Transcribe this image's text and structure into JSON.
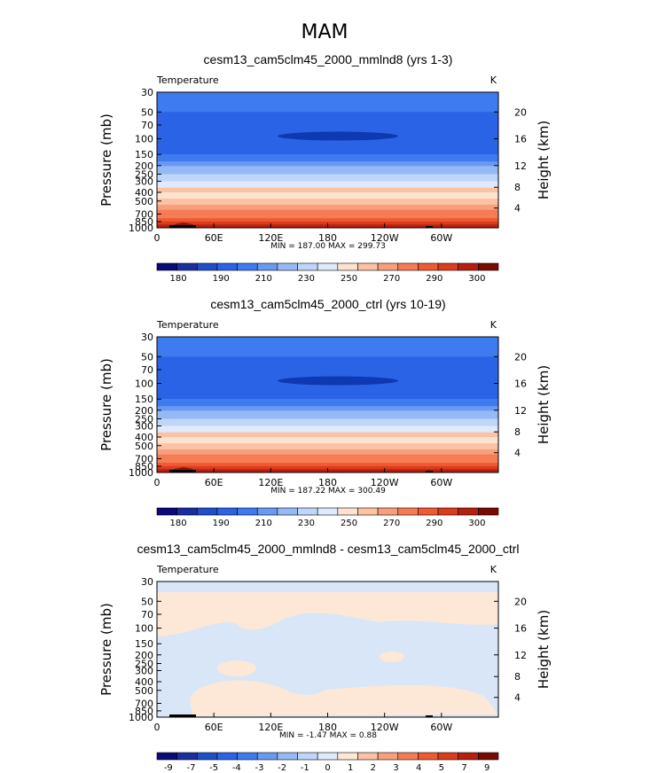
{
  "figure": {
    "title": "MAM"
  },
  "colors": {
    "temp_levels": [
      "#0a0a78",
      "#1a2ea0",
      "#1f4fc8",
      "#2a63e6",
      "#3f7bf0",
      "#6a99f2",
      "#96b9f5",
      "#bed6fa",
      "#dfeafc",
      "#fde3cf",
      "#fbc2a4",
      "#f8a07e",
      "#f57c55",
      "#ef5a32",
      "#db3c1c",
      "#b52010",
      "#7a0a04"
    ],
    "diff_levels": [
      "#0a0a78",
      "#1a2ea0",
      "#1f4fc8",
      "#2a63e6",
      "#3f7bf0",
      "#6a99f2",
      "#96b9f5",
      "#bed6fa",
      "#dfeafc",
      "#fde8d8",
      "#fbc2a4",
      "#f8a07e",
      "#f57c55",
      "#ef5a32",
      "#db3c1c",
      "#b52010",
      "#7a0a04"
    ],
    "light_blue": "#d8e6f8",
    "light_orange": "#fde8d8"
  },
  "chart_data": [
    {
      "type": "heatmap",
      "title": "cesm13_cam5clm45_2000_mmlnd8 (yrs 1-3)",
      "variable": "Temperature",
      "units": "K",
      "ylabel": "Pressure  (mb)",
      "ylabel_right": "Height  (km)",
      "x_ticks": [
        "0",
        "60E",
        "120E",
        "180",
        "120W",
        "60W"
      ],
      "y_ticks": [
        "30",
        "50",
        "70",
        "100",
        "150",
        "200",
        "250",
        "300",
        "400",
        "500",
        "700",
        "850",
        "1000"
      ],
      "right_ticks": [
        "20",
        "16",
        "12",
        "8",
        "4"
      ],
      "stats": "MIN = 187.00   MAX = 299.73",
      "colorbar_ticks": [
        "180",
        "190",
        "210",
        "230",
        "250",
        "270",
        "290",
        "300"
      ],
      "bands_pressure_mb": [
        [
          30,
          50,
          210
        ],
        [
          50,
          150,
          195
        ],
        [
          150,
          180,
          215
        ],
        [
          180,
          220,
          225
        ],
        [
          220,
          300,
          235
        ],
        [
          300,
          420,
          250
        ],
        [
          420,
          550,
          260
        ],
        [
          550,
          700,
          270
        ],
        [
          700,
          850,
          280
        ],
        [
          850,
          1000,
          290
        ]
      ]
    },
    {
      "type": "heatmap",
      "title": "cesm13_cam5clm45_2000_ctrl (yrs 10-19)",
      "variable": "Temperature",
      "units": "K",
      "ylabel": "Pressure  (mb)",
      "ylabel_right": "Height  (km)",
      "x_ticks": [
        "0",
        "60E",
        "120E",
        "180",
        "120W",
        "60W"
      ],
      "y_ticks": [
        "30",
        "50",
        "70",
        "100",
        "150",
        "200",
        "250",
        "300",
        "400",
        "500",
        "700",
        "850",
        "1000"
      ],
      "right_ticks": [
        "20",
        "16",
        "12",
        "8",
        "4"
      ],
      "stats": "MIN = 187.22   MAX = 300.49",
      "colorbar_ticks": [
        "180",
        "190",
        "210",
        "230",
        "250",
        "270",
        "290",
        "300"
      ],
      "bands_pressure_mb": [
        [
          30,
          50,
          210
        ],
        [
          50,
          150,
          195
        ],
        [
          150,
          180,
          215
        ],
        [
          180,
          220,
          225
        ],
        [
          220,
          300,
          235
        ],
        [
          300,
          420,
          250
        ],
        [
          420,
          550,
          260
        ],
        [
          550,
          700,
          270
        ],
        [
          700,
          850,
          280
        ],
        [
          850,
          1000,
          290
        ]
      ]
    },
    {
      "type": "heatmap",
      "title": "cesm13_cam5clm45_2000_mmlnd8 - cesm13_cam5clm45_2000_ctrl",
      "variable": "Temperature",
      "units": "K",
      "ylabel": "Pressure  (mb)",
      "ylabel_right": "Height  (km)",
      "x_ticks": [
        "0",
        "60E",
        "120E",
        "180",
        "120W",
        "60W"
      ],
      "y_ticks": [
        "30",
        "50",
        "70",
        "100",
        "150",
        "200",
        "250",
        "300",
        "400",
        "500",
        "700",
        "850",
        "1000"
      ],
      "right_ticks": [
        "20",
        "16",
        "12",
        "8",
        "4"
      ],
      "stats": "MIN =  -1.47   MAX =   0.88",
      "colorbar_ticks": [
        "-9",
        "-7",
        "-5",
        "-4",
        "-3",
        "-2",
        "-1",
        "0",
        "1",
        "2",
        "3",
        "4",
        "5",
        "7",
        "9"
      ]
    }
  ]
}
